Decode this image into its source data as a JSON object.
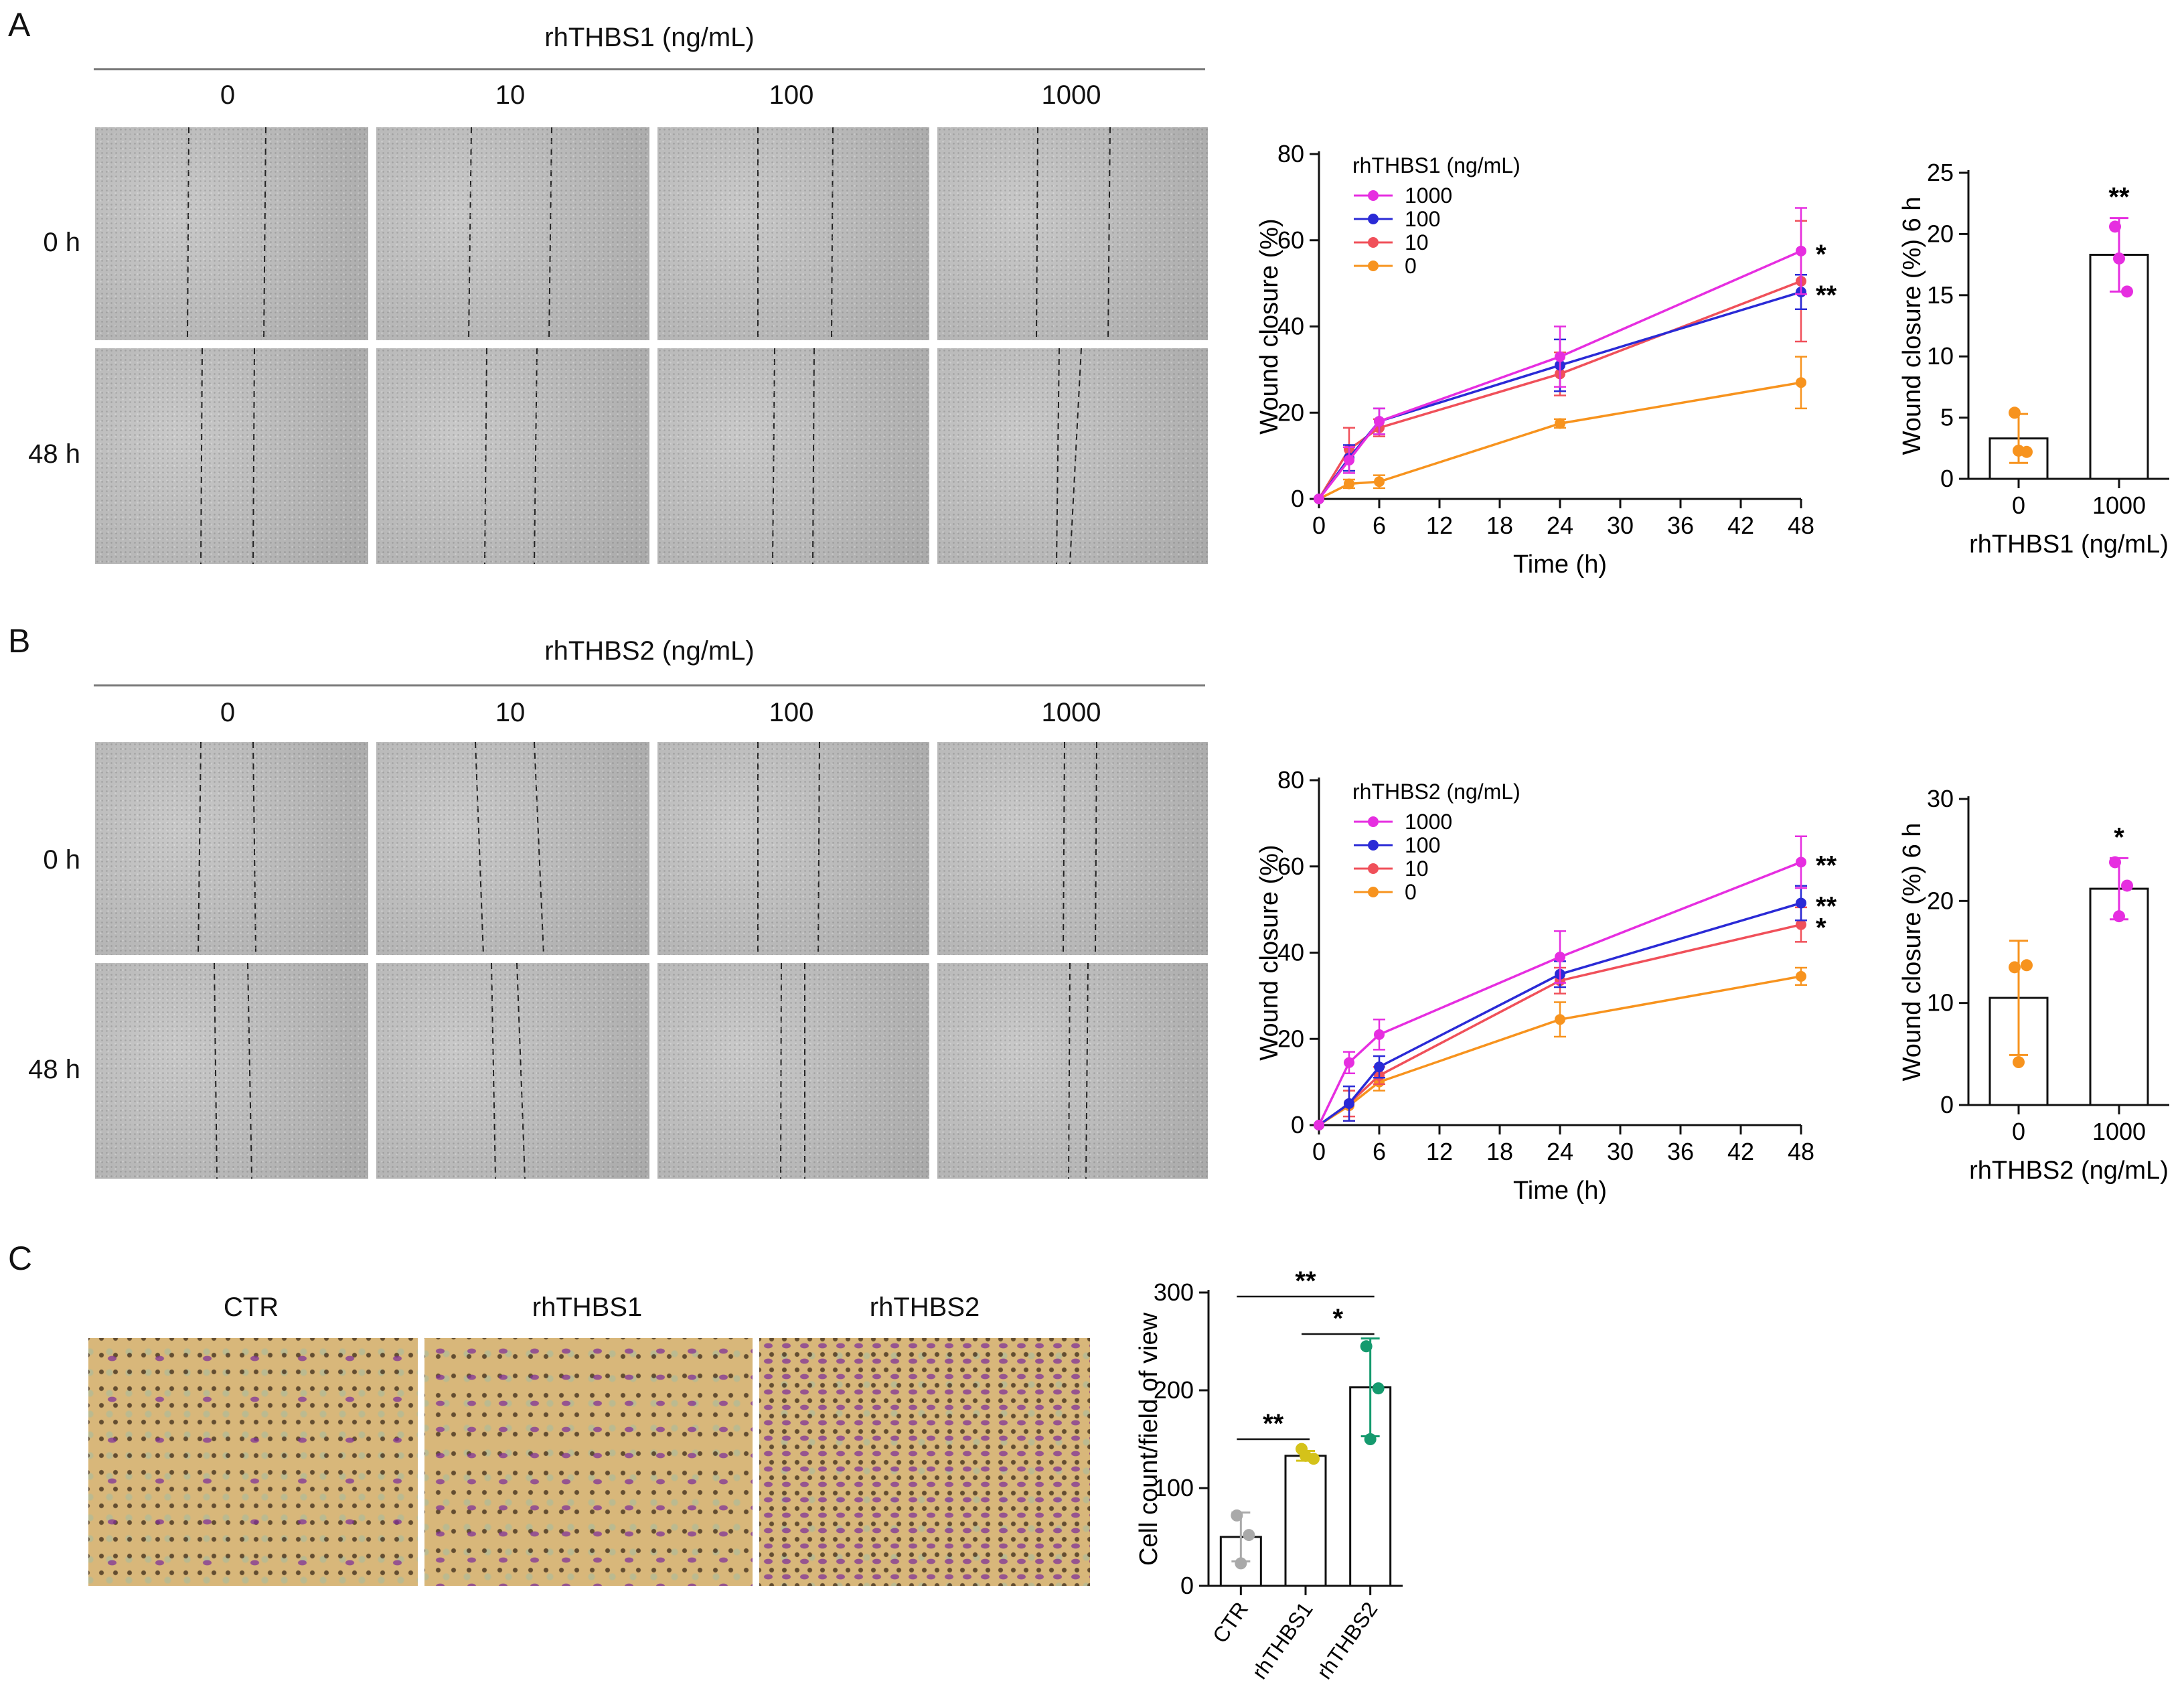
{
  "panels": {
    "a": {
      "letter": "A",
      "header": "rhTHBS1 (ng/mL)",
      "concentrations": [
        "0",
        "10",
        "100",
        "1000"
      ],
      "time_rows": [
        "0 h",
        "48 h"
      ]
    },
    "b": {
      "letter": "B",
      "header": "rhTHBS2 (ng/mL)",
      "concentrations": [
        "0",
        "10",
        "100",
        "1000"
      ],
      "time_rows": [
        "0 h",
        "48 h"
      ]
    },
    "c": {
      "letter": "C",
      "images": [
        "CTR",
        "rhTHBS1",
        "rhTHBS2"
      ]
    }
  },
  "colors": {
    "c1000": "#e62ee0",
    "c100": "#2a2ad6",
    "c10": "#f0505a",
    "c0": "#f7931e",
    "ctr": "#a9a9a9",
    "thbs1_dots": "#d4c21a",
    "thbs2_dots": "#159a6e"
  },
  "chart_data": [
    {
      "id": "a_line",
      "type": "line",
      "xlabel": "Time (h)",
      "ylabel": "Wound closure (%)",
      "xticks": [
        0,
        6,
        12,
        18,
        24,
        30,
        36,
        42,
        48
      ],
      "yticks": [
        0,
        20,
        40,
        60,
        80
      ],
      "xlim": [
        0,
        48
      ],
      "ylim": [
        0,
        80
      ],
      "legend_title": "rhTHBS1 (ng/mL)",
      "legend": [
        "1000",
        "100",
        "10",
        "0"
      ],
      "x": [
        0,
        3,
        6,
        24,
        48
      ],
      "series": [
        {
          "name": "1000",
          "values": [
            0,
            9,
            18,
            33,
            57.5
          ],
          "err": [
            0,
            3,
            3,
            7,
            10
          ],
          "sig": "*"
        },
        {
          "name": "100",
          "values": [
            0,
            9.5,
            18,
            31,
            48
          ],
          "err": [
            0,
            3,
            3,
            6,
            4
          ],
          "sig": "**"
        },
        {
          "name": "10",
          "values": [
            0,
            11.5,
            16.5,
            29,
            50.5
          ],
          "err": [
            0,
            5,
            2,
            5,
            14
          ],
          "sig": ""
        },
        {
          "name": "0",
          "values": [
            0,
            3.5,
            4,
            17.5,
            27
          ],
          "err": [
            0,
            1,
            1.5,
            1,
            6
          ],
          "sig": ""
        }
      ]
    },
    {
      "id": "a_bar",
      "type": "bar",
      "xlabel": "rhTHBS1 (ng/mL)",
      "ylabel": "Wound closure (%) 6 h",
      "categories": [
        "0",
        "1000"
      ],
      "values": [
        3.3,
        18.3
      ],
      "err": [
        2.0,
        3.0
      ],
      "points": [
        [
          5.4,
          2.2,
          2.3
        ],
        [
          20.6,
          15.3,
          18.0
        ]
      ],
      "yticks": [
        0,
        5,
        10,
        15,
        20,
        25
      ],
      "ylim": [
        0,
        25
      ],
      "sig": [
        "",
        "**"
      ]
    },
    {
      "id": "b_line",
      "type": "line",
      "xlabel": "Time (h)",
      "ylabel": "Wound closure (%)",
      "xticks": [
        0,
        6,
        12,
        18,
        24,
        30,
        36,
        42,
        48
      ],
      "yticks": [
        0,
        20,
        40,
        60,
        80
      ],
      "xlim": [
        0,
        48
      ],
      "ylim": [
        0,
        80
      ],
      "legend_title": "rhTHBS2 (ng/mL)",
      "legend": [
        "1000",
        "100",
        "10",
        "0"
      ],
      "x": [
        0,
        3,
        6,
        24,
        48
      ],
      "series": [
        {
          "name": "1000",
          "values": [
            0,
            14.5,
            21,
            39,
            61
          ],
          "err": [
            0,
            2.5,
            3.5,
            6,
            6
          ],
          "sig": "**"
        },
        {
          "name": "100",
          "values": [
            0,
            5,
            13.5,
            35,
            51.5
          ],
          "err": [
            0,
            4,
            2.5,
            3,
            4
          ],
          "sig": "**"
        },
        {
          "name": "10",
          "values": [
            0,
            5,
            11.5,
            33.5,
            46.5
          ],
          "err": [
            0,
            3,
            2,
            3,
            4
          ],
          "sig": "*"
        },
        {
          "name": "0",
          "values": [
            0,
            4.5,
            10,
            24.5,
            34.5
          ],
          "err": [
            0,
            3.5,
            2,
            4,
            2
          ],
          "sig": ""
        }
      ]
    },
    {
      "id": "b_bar",
      "type": "bar",
      "xlabel": "rhTHBS2 (ng/mL)",
      "ylabel": "Wound closure (%) 6 h",
      "categories": [
        "0",
        "1000"
      ],
      "values": [
        10.5,
        21.2
      ],
      "err": [
        5.6,
        3.0
      ],
      "points": [
        [
          13.5,
          13.7,
          4.2
        ],
        [
          23.8,
          21.5,
          18.5
        ]
      ],
      "yticks": [
        0,
        10,
        20,
        30
      ],
      "ylim": [
        0,
        30
      ],
      "sig": [
        "",
        "*"
      ]
    },
    {
      "id": "c_bar",
      "type": "bar",
      "xlabel": "",
      "ylabel": "Cell count/field of view",
      "categories": [
        "CTR",
        "rhTHBS1",
        "rhTHBS2"
      ],
      "values": [
        50,
        133,
        203
      ],
      "err": [
        25,
        5,
        50
      ],
      "points": [
        [
          72,
          52,
          23
        ],
        [
          140,
          130,
          133
        ],
        [
          245,
          202,
          150
        ]
      ],
      "yticks": [
        0,
        100,
        200,
        300
      ],
      "ylim": [
        0,
        300
      ],
      "comparisons": [
        {
          "from": 0,
          "to": 2,
          "label": "**"
        },
        {
          "from": 1,
          "to": 2,
          "label": "*"
        },
        {
          "from": 0,
          "to": 1,
          "label": "**"
        }
      ]
    }
  ]
}
